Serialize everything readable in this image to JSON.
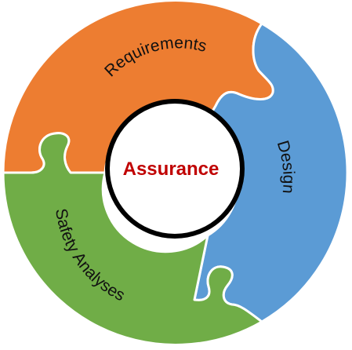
{
  "center": {
    "label": "Assurance",
    "label_color": "#C00000",
    "fill": "#ffffff",
    "stroke": "#000000"
  },
  "segments": [
    {
      "id": "requirements",
      "label": "Requirements",
      "color": "#ED7D31"
    },
    {
      "id": "design",
      "label": "Design",
      "color": "#5B9BD5"
    },
    {
      "id": "safety-analyses",
      "label": "Safety Analyses",
      "color": "#70AD47"
    }
  ],
  "outline_color": "#ffffff"
}
